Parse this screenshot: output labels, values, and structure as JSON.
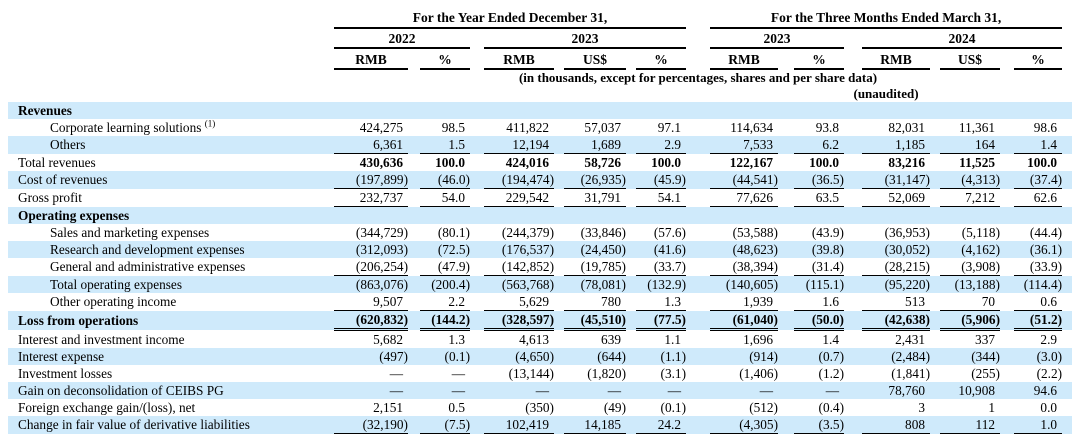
{
  "header": {
    "group_year": "For the Year Ended December 31,",
    "group_quarter": "For the Three Months Ended March 31,",
    "years": [
      "2022",
      "2023",
      "2023",
      "2024"
    ],
    "columns": [
      "RMB",
      "%",
      "RMB",
      "US$",
      "%",
      "RMB",
      "%",
      "RMB",
      "US$",
      "%"
    ],
    "note": "(in thousands, except for percentages, shares and per share data)",
    "unaudited": "(unaudited)"
  },
  "colors": {
    "row_shade": "#cfeafb",
    "text": "#000000"
  },
  "rows": [
    {
      "label": "Revenues",
      "section": true,
      "shaded": true,
      "values": []
    },
    {
      "label": "Corporate learning solutions",
      "footnote": "(1)",
      "indent": true,
      "values": [
        "424,275",
        "98.5",
        "411,822",
        "57,037",
        "97.1",
        "114,634",
        "93.8",
        "82,031",
        "11,361",
        "98.6"
      ]
    },
    {
      "label": "Others",
      "indent": true,
      "shaded": true,
      "underline": "single",
      "values": [
        "6,361",
        "1.5",
        "12,194",
        "1,689",
        "2.9",
        "7,533",
        "6.2",
        "1,185",
        "164",
        "1.4"
      ]
    },
    {
      "label": "Total revenues",
      "bold": "values",
      "values": [
        "430,636",
        "100.0",
        "424,016",
        "58,726",
        "100.0",
        "122,167",
        "100.0",
        "83,216",
        "11,525",
        "100.0"
      ]
    },
    {
      "label": "Cost of revenues",
      "shaded": true,
      "underline": "single",
      "values": [
        "(197,899)",
        "(46.0)",
        "(194,474)",
        "(26,935)",
        "(45.9)",
        "(44,541)",
        "(36.5)",
        "(31,147)",
        "(4,313)",
        "(37.4)"
      ]
    },
    {
      "label": "Gross profit",
      "underline": "single",
      "values": [
        "232,737",
        "54.0",
        "229,542",
        "31,791",
        "54.1",
        "77,626",
        "63.5",
        "52,069",
        "7,212",
        "62.6"
      ]
    },
    {
      "label": "Operating expenses",
      "section": true,
      "shaded": true,
      "values": []
    },
    {
      "label": "Sales and marketing expenses",
      "indent": true,
      "values": [
        "(344,729)",
        "(80.1)",
        "(244,379)",
        "(33,846)",
        "(57.6)",
        "(53,588)",
        "(43.9)",
        "(36,953)",
        "(5,118)",
        "(44.4)"
      ]
    },
    {
      "label": "Research and development expenses",
      "indent": true,
      "shaded": true,
      "values": [
        "(312,093)",
        "(72.5)",
        "(176,537)",
        "(24,450)",
        "(41.6)",
        "(48,623)",
        "(39.8)",
        "(30,052)",
        "(4,162)",
        "(36.1)"
      ]
    },
    {
      "label": "General and administrative expenses",
      "indent": true,
      "underline": "single",
      "values": [
        "(206,254)",
        "(47.9)",
        "(142,852)",
        "(19,785)",
        "(33.7)",
        "(38,394)",
        "(31.4)",
        "(28,215)",
        "(3,908)",
        "(33.9)"
      ]
    },
    {
      "label": "Total operating expenses",
      "indent": true,
      "shaded": true,
      "values": [
        "(863,076)",
        "(200.4)",
        "(563,768)",
        "(78,081)",
        "(132.9)",
        "(140,605)",
        "(115.1)",
        "(95,220)",
        "(13,188)",
        "(114.4)"
      ]
    },
    {
      "label": "Other operating income",
      "indent": true,
      "underline": "single",
      "values": [
        "9,507",
        "2.2",
        "5,629",
        "780",
        "1.3",
        "1,939",
        "1.6",
        "513",
        "70",
        "0.6"
      ]
    },
    {
      "label": "Loss from operations",
      "shaded": true,
      "bold": "all",
      "underline": "double",
      "values": [
        "(620,832)",
        "(144.2)",
        "(328,597)",
        "(45,510)",
        "(77.5)",
        "(61,040)",
        "(50.0)",
        "(42,638)",
        "(5,906)",
        "(51.2)"
      ]
    },
    {
      "label": "Interest and investment income",
      "values": [
        "5,682",
        "1.3",
        "4,613",
        "639",
        "1.1",
        "1,696",
        "1.4",
        "2,431",
        "337",
        "2.9"
      ]
    },
    {
      "label": "Interest expense",
      "shaded": true,
      "values": [
        "(497)",
        "(0.1)",
        "(4,650)",
        "(644)",
        "(1.1)",
        "(914)",
        "(0.7)",
        "(2,484)",
        "(344)",
        "(3.0)"
      ]
    },
    {
      "label": "Investment losses",
      "values": [
        "—",
        "—",
        "(13,144)",
        "(1,820)",
        "(3.1)",
        "(1,406)",
        "(1.2)",
        "(1,841)",
        "(255)",
        "(2.2)"
      ]
    },
    {
      "label": "Gain on deconsolidation of CEIBS PG",
      "shaded": true,
      "values": [
        "—",
        "—",
        "—",
        "—",
        "—",
        "—",
        "—",
        "78,760",
        "10,908",
        "94.6"
      ]
    },
    {
      "label": "Foreign exchange gain/(loss), net",
      "values": [
        "2,151",
        "0.5",
        "(350)",
        "(49)",
        "(0.1)",
        "(512)",
        "(0.4)",
        "3",
        "1",
        "0.0"
      ]
    },
    {
      "label": "Change in fair value of derivative liabilities",
      "shaded": true,
      "underline": "single",
      "values": [
        "(32,190)",
        "(7.5)",
        "102,419",
        "14,185",
        "24.2",
        "(4,305)",
        "(3.5)",
        "808",
        "112",
        "1.0"
      ]
    }
  ]
}
